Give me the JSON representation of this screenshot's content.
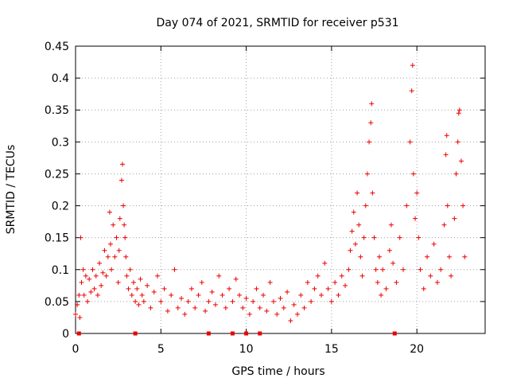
{
  "chart_data": {
    "type": "scatter",
    "title": "Day 074 of 2021, SRMTID for receiver p531",
    "xlabel": "GPS time / hours",
    "ylabel": "SRMTID / TECUs",
    "xlim": [
      0,
      24
    ],
    "ylim": [
      0,
      0.45
    ],
    "xticks": [
      0,
      5,
      10,
      15,
      20
    ],
    "yticks": [
      0,
      0.05,
      0.1,
      0.15,
      0.2,
      0.25,
      0.3,
      0.35,
      0.4,
      0.45
    ],
    "xtick_labels": [
      "0",
      "5",
      "10",
      "15",
      "20"
    ],
    "ytick_labels": [
      "0",
      "0.05",
      "0.1",
      "0.15",
      "0.2",
      "0.25",
      "0.3",
      "0.35",
      "0.4",
      "0.45"
    ],
    "grid": true,
    "legend": "none",
    "marker": "+",
    "series_color": "#ee0000",
    "series": [
      {
        "name": "SRMTID",
        "points": [
          [
            0.0,
            0.03
          ],
          [
            0.1,
            0.045
          ],
          [
            0.2,
            0.06
          ],
          [
            0.25,
            0.025
          ],
          [
            0.3,
            0.15
          ],
          [
            0.35,
            0.08
          ],
          [
            0.45,
            0.1
          ],
          [
            0.5,
            0.06
          ],
          [
            0.6,
            0.09
          ],
          [
            0.7,
            0.05
          ],
          [
            0.8,
            0.085
          ],
          [
            0.9,
            0.065
          ],
          [
            1.0,
            0.1
          ],
          [
            1.1,
            0.07
          ],
          [
            1.2,
            0.09
          ],
          [
            1.3,
            0.06
          ],
          [
            1.4,
            0.11
          ],
          [
            1.5,
            0.075
          ],
          [
            1.6,
            0.095
          ],
          [
            1.7,
            0.13
          ],
          [
            1.8,
            0.09
          ],
          [
            1.9,
            0.12
          ],
          [
            2.0,
            0.19
          ],
          [
            2.05,
            0.14
          ],
          [
            2.1,
            0.1
          ],
          [
            2.2,
            0.17
          ],
          [
            2.3,
            0.12
          ],
          [
            2.4,
            0.15
          ],
          [
            2.5,
            0.08
          ],
          [
            2.55,
            0.13
          ],
          [
            2.6,
            0.18
          ],
          [
            2.7,
            0.24
          ],
          [
            2.75,
            0.265
          ],
          [
            2.8,
            0.2
          ],
          [
            2.85,
            0.17
          ],
          [
            2.9,
            0.15
          ],
          [
            2.95,
            0.12
          ],
          [
            3.0,
            0.09
          ],
          [
            3.1,
            0.07
          ],
          [
            3.2,
            0.1
          ],
          [
            3.3,
            0.06
          ],
          [
            3.4,
            0.08
          ],
          [
            3.5,
            0.05
          ],
          [
            3.6,
            0.07
          ],
          [
            3.7,
            0.045
          ],
          [
            3.8,
            0.085
          ],
          [
            3.9,
            0.06
          ],
          [
            4.0,
            0.05
          ],
          [
            4.2,
            0.075
          ],
          [
            4.4,
            0.04
          ],
          [
            4.6,
            0.065
          ],
          [
            4.8,
            0.09
          ],
          [
            5.0,
            0.05
          ],
          [
            5.2,
            0.07
          ],
          [
            5.4,
            0.035
          ],
          [
            5.6,
            0.06
          ],
          [
            5.8,
            0.1
          ],
          [
            6.0,
            0.04
          ],
          [
            6.2,
            0.055
          ],
          [
            6.4,
            0.03
          ],
          [
            6.6,
            0.05
          ],
          [
            6.8,
            0.07
          ],
          [
            7.0,
            0.04
          ],
          [
            7.2,
            0.06
          ],
          [
            7.4,
            0.08
          ],
          [
            7.6,
            0.035
          ],
          [
            7.8,
            0.05
          ],
          [
            8.0,
            0.065
          ],
          [
            8.2,
            0.045
          ],
          [
            8.4,
            0.09
          ],
          [
            8.6,
            0.06
          ],
          [
            8.8,
            0.04
          ],
          [
            9.0,
            0.07
          ],
          [
            9.2,
            0.05
          ],
          [
            9.4,
            0.085
          ],
          [
            9.6,
            0.06
          ],
          [
            9.8,
            0.04
          ],
          [
            10.0,
            0.055
          ],
          [
            10.2,
            0.03
          ],
          [
            10.4,
            0.05
          ],
          [
            10.6,
            0.07
          ],
          [
            10.8,
            0.04
          ],
          [
            11.0,
            0.06
          ],
          [
            11.2,
            0.035
          ],
          [
            11.4,
            0.08
          ],
          [
            11.6,
            0.05
          ],
          [
            11.8,
            0.03
          ],
          [
            12.0,
            0.055
          ],
          [
            12.2,
            0.04
          ],
          [
            12.4,
            0.065
          ],
          [
            12.6,
            0.02
          ],
          [
            12.8,
            0.045
          ],
          [
            13.0,
            0.03
          ],
          [
            13.2,
            0.06
          ],
          [
            13.4,
            0.04
          ],
          [
            13.6,
            0.08
          ],
          [
            13.8,
            0.05
          ],
          [
            14.0,
            0.07
          ],
          [
            14.2,
            0.09
          ],
          [
            14.4,
            0.06
          ],
          [
            14.6,
            0.11
          ],
          [
            14.8,
            0.07
          ],
          [
            15.0,
            0.05
          ],
          [
            15.2,
            0.08
          ],
          [
            15.4,
            0.06
          ],
          [
            15.6,
            0.09
          ],
          [
            15.8,
            0.075
          ],
          [
            16.0,
            0.1
          ],
          [
            16.1,
            0.13
          ],
          [
            16.2,
            0.16
          ],
          [
            16.3,
            0.19
          ],
          [
            16.4,
            0.14
          ],
          [
            16.5,
            0.22
          ],
          [
            16.6,
            0.17
          ],
          [
            16.7,
            0.12
          ],
          [
            16.8,
            0.09
          ],
          [
            16.9,
            0.15
          ],
          [
            17.0,
            0.2
          ],
          [
            17.1,
            0.25
          ],
          [
            17.2,
            0.3
          ],
          [
            17.3,
            0.33
          ],
          [
            17.35,
            0.36
          ],
          [
            17.4,
            0.22
          ],
          [
            17.5,
            0.15
          ],
          [
            17.6,
            0.1
          ],
          [
            17.7,
            0.08
          ],
          [
            17.8,
            0.12
          ],
          [
            17.9,
            0.06
          ],
          [
            18.0,
            0.1
          ],
          [
            18.2,
            0.07
          ],
          [
            18.4,
            0.13
          ],
          [
            18.5,
            0.17
          ],
          [
            18.6,
            0.11
          ],
          [
            18.8,
            0.08
          ],
          [
            19.0,
            0.15
          ],
          [
            19.2,
            0.1
          ],
          [
            19.4,
            0.2
          ],
          [
            19.6,
            0.3
          ],
          [
            19.7,
            0.38
          ],
          [
            19.75,
            0.42
          ],
          [
            19.8,
            0.25
          ],
          [
            19.9,
            0.18
          ],
          [
            20.0,
            0.22
          ],
          [
            20.1,
            0.15
          ],
          [
            20.2,
            0.1
          ],
          [
            20.4,
            0.07
          ],
          [
            20.6,
            0.12
          ],
          [
            20.8,
            0.09
          ],
          [
            21.0,
            0.14
          ],
          [
            21.2,
            0.08
          ],
          [
            21.4,
            0.1
          ],
          [
            21.6,
            0.17
          ],
          [
            21.7,
            0.28
          ],
          [
            21.75,
            0.31
          ],
          [
            21.8,
            0.2
          ],
          [
            21.9,
            0.12
          ],
          [
            22.0,
            0.09
          ],
          [
            22.2,
            0.18
          ],
          [
            22.3,
            0.25
          ],
          [
            22.4,
            0.3
          ],
          [
            22.45,
            0.345
          ],
          [
            22.5,
            0.35
          ],
          [
            22.6,
            0.27
          ],
          [
            22.7,
            0.2
          ],
          [
            22.8,
            0.12
          ]
        ]
      }
    ],
    "gap_markers_x": [
      0.2,
      3.5,
      7.8,
      9.2,
      10.0,
      10.8,
      18.7
    ]
  }
}
